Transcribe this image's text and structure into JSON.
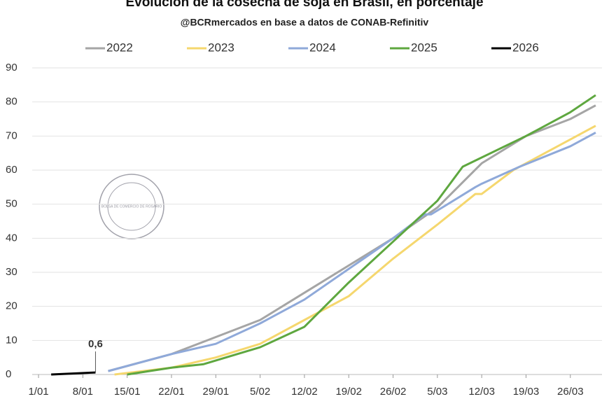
{
  "chart_data": {
    "type": "line",
    "title": "Evolución de la cosecha de soja en Brasil, en porcentaje",
    "subtitle": "@BCRmercados en base a datos de CONAB-Refinitiv",
    "watermark": "BOLSA DE COMERCIO DE ROSARIO",
    "annotation": {
      "text": "0,6",
      "x": 10,
      "y": 0.6
    },
    "xlim": [
      0,
      90
    ],
    "xticks": [
      {
        "value": 1,
        "label": "1/01"
      },
      {
        "value": 8,
        "label": "8/01"
      },
      {
        "value": 15,
        "label": "15/01"
      },
      {
        "value": 22,
        "label": "22/01"
      },
      {
        "value": 29,
        "label": "29/01"
      },
      {
        "value": 36,
        "label": "5/02"
      },
      {
        "value": 43,
        "label": "12/02"
      },
      {
        "value": 50,
        "label": "19/02"
      },
      {
        "value": 57,
        "label": "26/02"
      },
      {
        "value": 64,
        "label": "5/03"
      },
      {
        "value": 71,
        "label": "12/03"
      },
      {
        "value": 78,
        "label": "19/03"
      },
      {
        "value": 85,
        "label": "26/03"
      }
    ],
    "ylim": [
      0,
      90
    ],
    "yticks": [
      0,
      10,
      20,
      30,
      40,
      50,
      60,
      70,
      80,
      90
    ],
    "grid": true,
    "series": [
      {
        "name": "2022",
        "color": "#a5a5a5",
        "x": [
          12,
          22,
          29,
          36,
          43,
          50,
          57,
          64,
          71,
          78,
          85,
          89
        ],
        "values": [
          1,
          6,
          11,
          16,
          24,
          32,
          40,
          49,
          62,
          70,
          75,
          79
        ]
      },
      {
        "name": "2023",
        "color": "#f5d76e",
        "x": [
          13,
          22,
          29,
          36,
          43,
          50,
          57,
          64,
          70,
          71,
          76,
          78,
          85,
          89
        ],
        "values": [
          0,
          2,
          5,
          9,
          16,
          23,
          34,
          44,
          53,
          53,
          60,
          62,
          69,
          73
        ]
      },
      {
        "name": "2024",
        "color": "#8fa9d9",
        "x": [
          12,
          22,
          29,
          36,
          43,
          50,
          57,
          62,
          63,
          70,
          71,
          77,
          85,
          89
        ],
        "values": [
          1,
          6,
          9,
          15,
          22,
          31,
          40,
          47,
          47,
          55,
          56,
          61,
          67,
          71
        ]
      },
      {
        "name": "2025",
        "color": "#5ea73f",
        "x": [
          15,
          22,
          27,
          36,
          43,
          50,
          57,
          64,
          68,
          78,
          85,
          89
        ],
        "values": [
          0,
          2,
          3,
          8,
          14,
          27,
          39,
          51,
          61,
          70,
          77,
          82
        ]
      },
      {
        "name": "2026",
        "color": "#000000",
        "x": [
          3,
          10
        ],
        "values": [
          0,
          0.6
        ]
      }
    ]
  }
}
